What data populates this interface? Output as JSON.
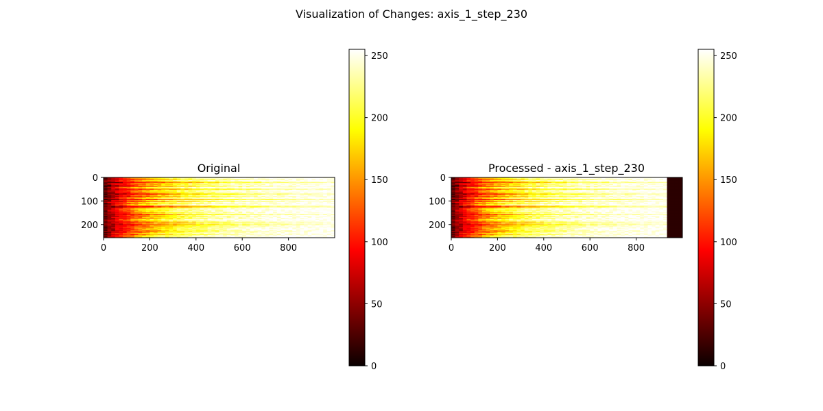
{
  "figure": {
    "suptitle": "Visualization of Changes: axis_1_step_230"
  },
  "chart_data": [
    {
      "type": "heatmap",
      "title": "Original",
      "colormap": "hot",
      "value_range": [
        0,
        255
      ],
      "image_shape": [
        256,
        1000
      ],
      "xlim": [
        0,
        1000
      ],
      "ylim": [
        256,
        0
      ],
      "x_ticks": [
        0,
        200,
        400,
        600,
        800
      ],
      "y_ticks": [
        0,
        100,
        200
      ],
      "description": "Each row ramps from dark (≈0) at column 0 to bright (≈255) toward the right; row-to-row variation in ramp speed.",
      "ramp_profile": {
        "columns": [
          0,
          100,
          200,
          300,
          400,
          600,
          800,
          1000
        ],
        "typical_values": [
          20,
          60,
          110,
          170,
          215,
          240,
          250,
          250
        ]
      }
    },
    {
      "type": "heatmap",
      "title": "Processed - axis_1_step_230",
      "colormap": "hot",
      "value_range": [
        0,
        255
      ],
      "image_shape": [
        256,
        1000
      ],
      "xlim": [
        0,
        1000
      ],
      "ylim": [
        256,
        0
      ],
      "x_ticks": [
        0,
        200,
        400,
        600,
        800
      ],
      "y_ticks": [
        0,
        100,
        200
      ],
      "description": "Same row ramps compressed horizontally; columns beyond ≈930 are near zero (dark band on the right).",
      "dark_band_start_column": 930,
      "dark_band_value": 5
    }
  ],
  "colorbars": [
    {
      "ticks": [
        0,
        50,
        100,
        150,
        200,
        250
      ],
      "range": [
        0,
        255
      ]
    },
    {
      "ticks": [
        0,
        50,
        100,
        150,
        200,
        250
      ],
      "range": [
        0,
        255
      ]
    }
  ]
}
